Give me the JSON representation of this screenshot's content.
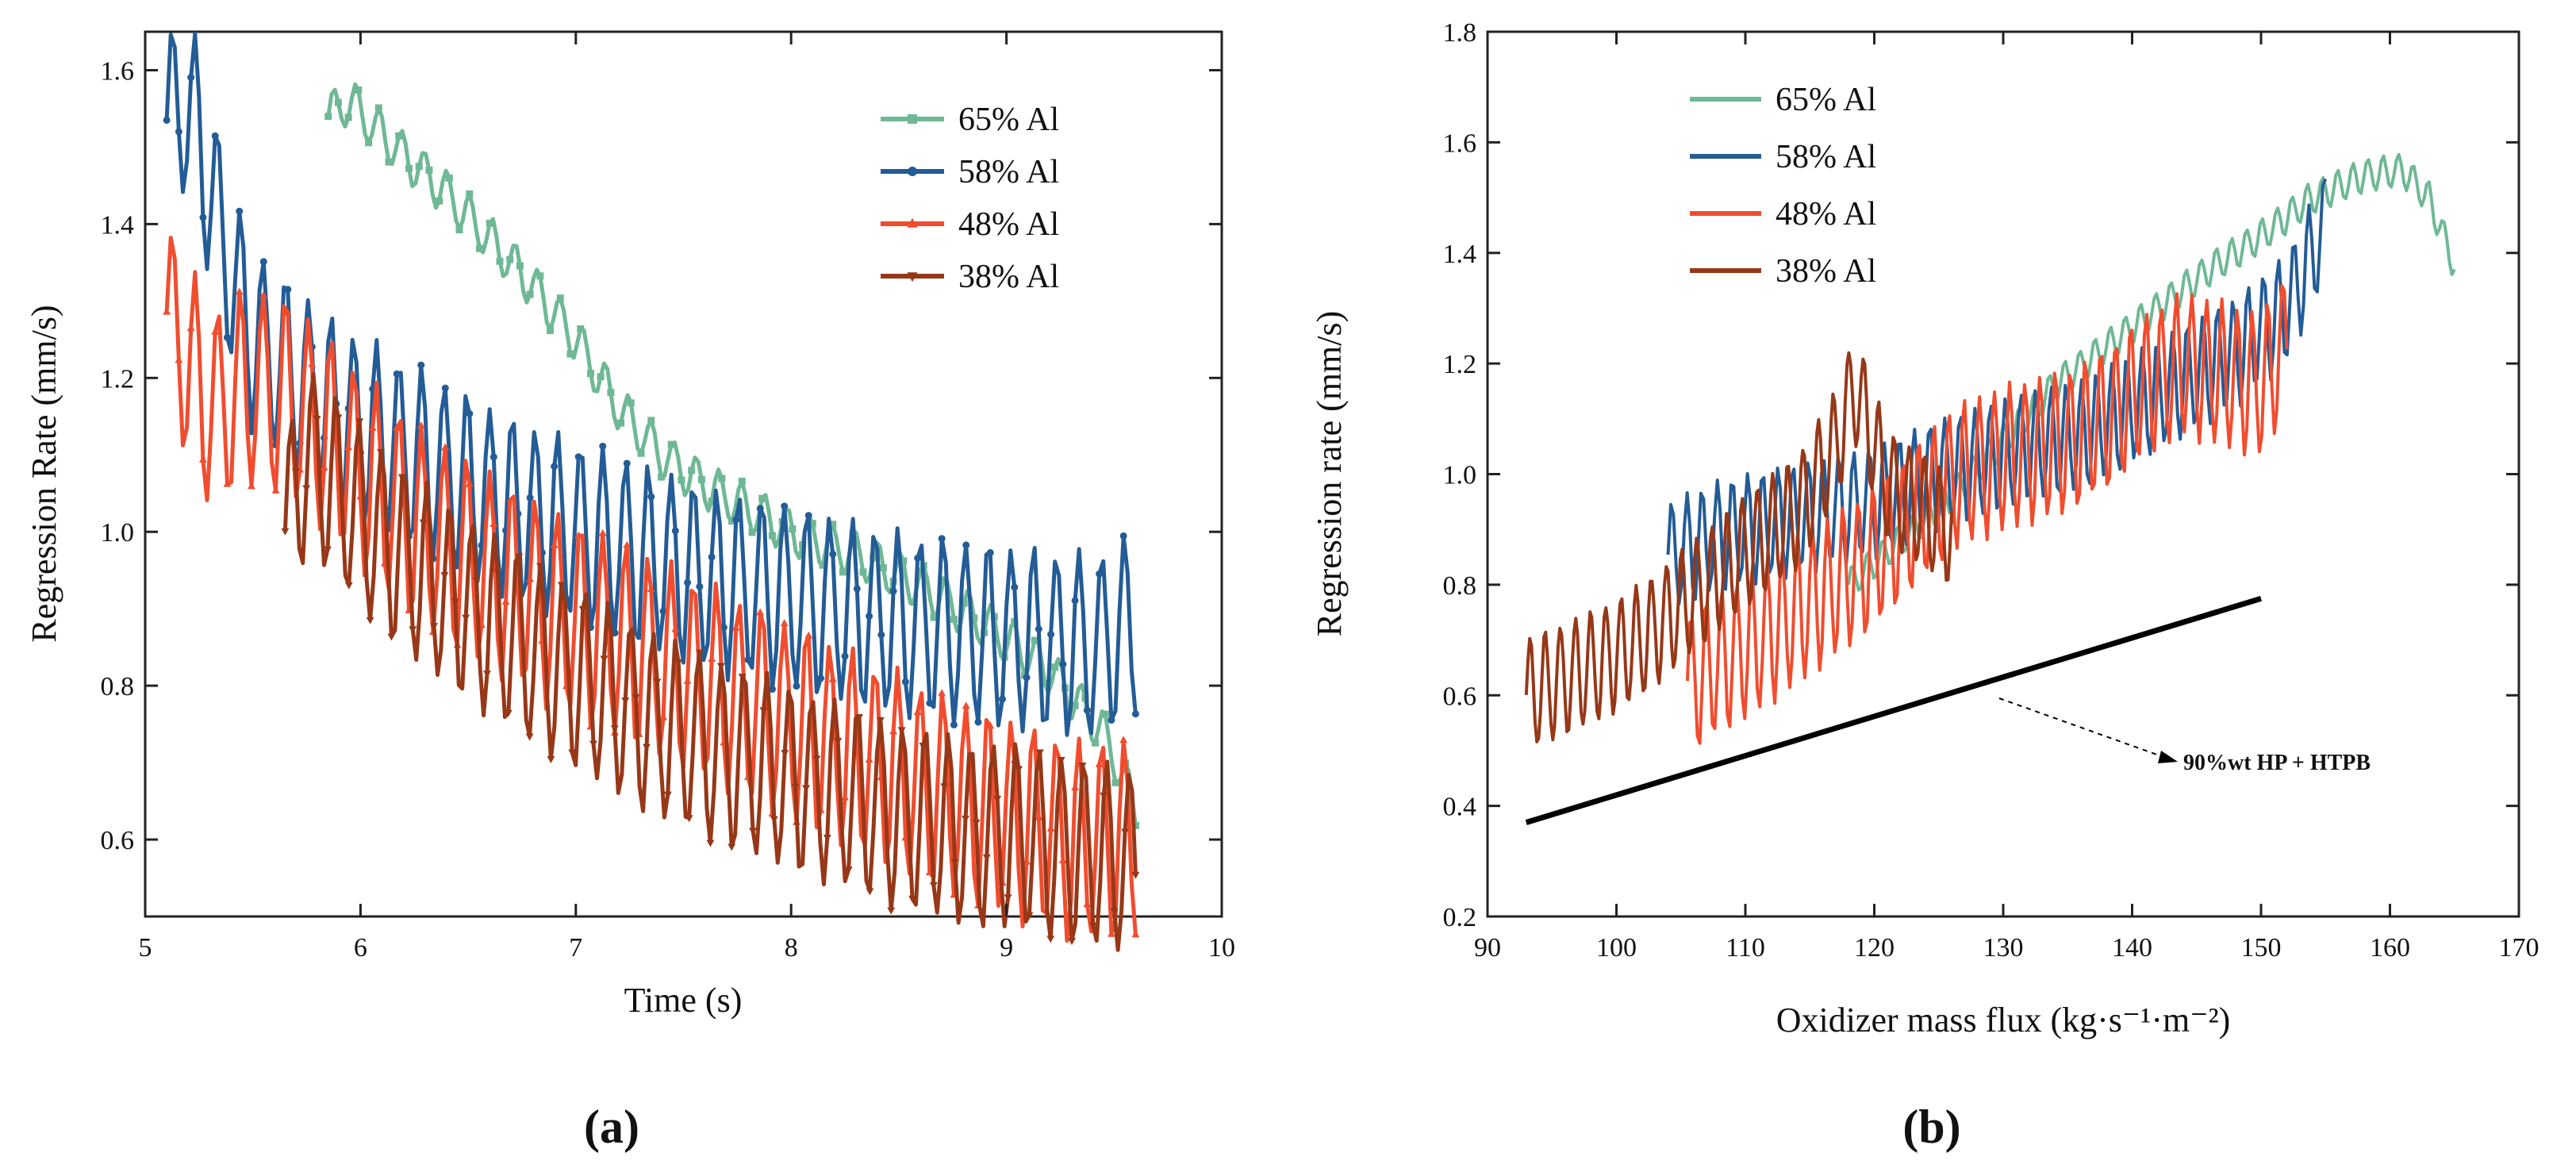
{
  "panels": [
    {
      "label": "(a)"
    },
    {
      "label": "(b)"
    }
  ],
  "chart_data": [
    {
      "type": "line",
      "panel": "a",
      "title": "",
      "xlabel": "Time (s)",
      "ylabel": "Regression Rate (mm/s)",
      "xlim": [
        5,
        10
      ],
      "ylim": [
        0.5,
        1.65
      ],
      "xticks": [
        5,
        6,
        7,
        8,
        9,
        10
      ],
      "yticks": [
        0.6,
        0.8,
        1.0,
        1.2,
        1.4,
        1.6
      ],
      "xtick_labels": [
        "5",
        "6",
        "7",
        "8",
        "9",
        "10"
      ],
      "ytick_labels": [
        "0.6",
        "0.8",
        "1.0",
        "1.2",
        "1.4",
        "1.6"
      ],
      "grid": false,
      "legend": "top-right",
      "series": [
        {
          "name": "65% Al",
          "color": "#6fb896",
          "marker": "square",
          "x": [
            5.85,
            5.95,
            6.05,
            6.2,
            6.4,
            6.6,
            6.8,
            7.0,
            7.2,
            7.4,
            7.6,
            7.8,
            8.0,
            8.3,
            8.6,
            8.9,
            9.2,
            9.45,
            9.6
          ],
          "y": [
            1.54,
            1.56,
            1.53,
            1.49,
            1.44,
            1.38,
            1.32,
            1.25,
            1.16,
            1.1,
            1.06,
            1.03,
            1.0,
            0.97,
            0.93,
            0.88,
            0.82,
            0.74,
            0.64
          ],
          "osc": 0.03
        },
        {
          "name": "58% Al",
          "color": "#235c96",
          "marker": "circle",
          "x": [
            5.1,
            5.2,
            5.3,
            5.4,
            5.5,
            5.7,
            5.9,
            6.1,
            6.3,
            6.5,
            6.7,
            7.0,
            7.3,
            7.6,
            7.9,
            8.2,
            8.5,
            8.8,
            9.1,
            9.4,
            9.6
          ],
          "y": [
            1.53,
            1.56,
            1.45,
            1.33,
            1.25,
            1.2,
            1.15,
            1.12,
            1.09,
            1.06,
            1.03,
            1.0,
            0.97,
            0.94,
            0.92,
            0.9,
            0.88,
            0.87,
            0.86,
            0.85,
            0.88
          ],
          "osc": 0.12
        },
        {
          "name": "48% Al",
          "color": "#f04d2f",
          "marker": "triangle",
          "x": [
            5.1,
            5.2,
            5.3,
            5.5,
            5.7,
            6.0,
            6.3,
            6.6,
            6.9,
            7.2,
            7.5,
            7.8,
            8.1,
            8.4,
            8.7,
            9.0,
            9.3,
            9.6
          ],
          "y": [
            1.28,
            1.22,
            1.16,
            1.19,
            1.17,
            1.08,
            1.0,
            0.95,
            0.9,
            0.86,
            0.82,
            0.78,
            0.74,
            0.7,
            0.66,
            0.63,
            0.6,
            0.6
          ],
          "osc": 0.13
        },
        {
          "name": "38% Al",
          "color": "#963818",
          "marker": "triangle-down",
          "x": [
            5.65,
            5.75,
            5.9,
            6.1,
            6.3,
            6.5,
            6.7,
            7.0,
            7.3,
            7.6,
            7.9,
            8.2,
            8.5,
            8.8,
            9.1,
            9.4,
            9.6
          ],
          "y": [
            1.0,
            1.1,
            1.05,
            0.99,
            0.94,
            0.9,
            0.86,
            0.81,
            0.76,
            0.72,
            0.69,
            0.66,
            0.63,
            0.61,
            0.6,
            0.58,
            0.57
          ],
          "osc": 0.12
        }
      ]
    },
    {
      "type": "line",
      "panel": "b",
      "title": "",
      "xlabel": "Oxidizer mass flux (kg·s⁻¹·m⁻²)",
      "ylabel": "Regression rate (mm/s)",
      "xlim": [
        90,
        170
      ],
      "ylim": [
        0.2,
        1.8
      ],
      "xticks": [
        90,
        100,
        110,
        120,
        130,
        140,
        150,
        160,
        170
      ],
      "yticks": [
        0.2,
        0.4,
        0.6,
        0.8,
        1.0,
        1.2,
        1.4,
        1.6,
        1.8
      ],
      "xtick_labels": [
        "90",
        "100",
        "110",
        "120",
        "130",
        "140",
        "150",
        "160",
        "170"
      ],
      "ytick_labels": [
        "0.2",
        "0.4",
        "0.6",
        "0.8",
        "1.0",
        "1.2",
        "1.4",
        "1.6",
        "1.8"
      ],
      "grid": false,
      "legend": "top-left",
      "annotation": "90%wt HP + HTPB",
      "series": [
        {
          "name": "65% Al",
          "color": "#6fb896",
          "x": [
            118,
            122,
            126,
            130,
            134,
            138,
            142,
            146,
            150,
            154,
            158,
            161,
            163,
            165
          ],
          "y": [
            0.8,
            0.88,
            0.96,
            1.06,
            1.16,
            1.23,
            1.3,
            1.37,
            1.43,
            1.5,
            1.54,
            1.55,
            1.5,
            1.38
          ],
          "osc": 0.03
        },
        {
          "name": "58% Al",
          "color": "#235c96",
          "x": [
            104,
            108,
            112,
            116,
            120,
            124,
            128,
            132,
            136,
            140,
            144,
            148,
            152,
            155
          ],
          "y": [
            0.85,
            0.89,
            0.91,
            0.93,
            0.95,
            0.99,
            1.02,
            1.05,
            1.07,
            1.12,
            1.17,
            1.22,
            1.3,
            1.45
          ],
          "osc": 0.1
        },
        {
          "name": "48% Al",
          "color": "#f04d2f",
          "x": [
            105.5,
            108,
            111,
            114,
            117,
            120,
            123,
            126,
            129,
            132,
            135,
            138,
            141,
            144,
            147,
            150,
            152
          ],
          "y": [
            0.62,
            0.66,
            0.7,
            0.75,
            0.8,
            0.85,
            0.92,
            0.99,
            1.02,
            1.04,
            1.06,
            1.1,
            1.16,
            1.2,
            1.18,
            1.16,
            1.24
          ],
          "osc": 0.13
        },
        {
          "name": "38% Al",
          "color": "#963818",
          "x": [
            93,
            96,
            99,
            102,
            105,
            108,
            111,
            114,
            117,
            118.5,
            121,
            124,
            126
          ],
          "y": [
            0.6,
            0.63,
            0.66,
            0.7,
            0.76,
            0.82,
            0.88,
            0.93,
            1.05,
            1.16,
            0.98,
            0.93,
            0.9
          ],
          "osc": 0.1
        },
        {
          "name": "90%wt HP + HTPB",
          "color": "#000000",
          "x": [
            93,
            150
          ],
          "y": [
            0.37,
            0.775
          ],
          "osc": 0
        }
      ]
    }
  ]
}
